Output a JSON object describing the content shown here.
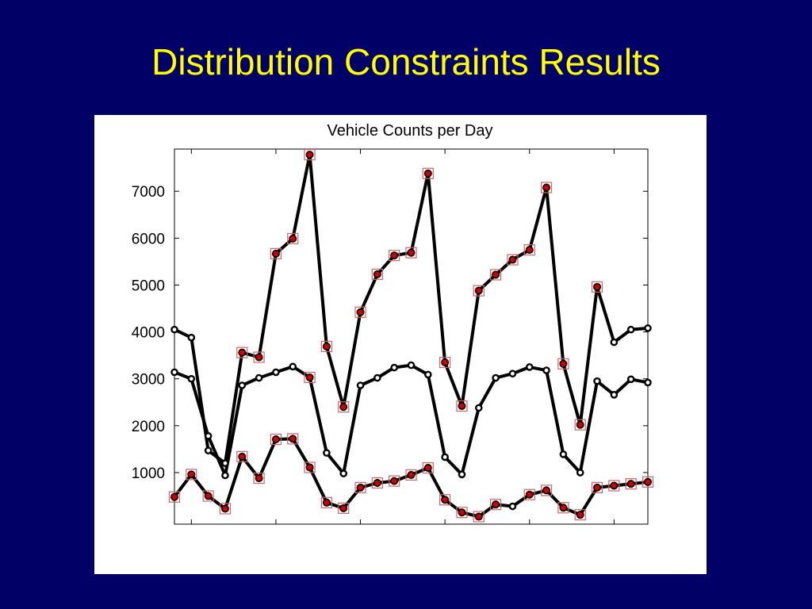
{
  "slide": {
    "title": "Distribution Constraints Results"
  },
  "colors": {
    "background": "#000066",
    "title": "#FFFF00",
    "panel": "#FFFFFF",
    "line": "#000000",
    "marker_fill": "#CC0000",
    "marker_box": "#CC6666"
  },
  "chart_data": {
    "type": "line",
    "title": "Vehicle Counts per Day",
    "xlabel": "",
    "ylabel": "",
    "xlim": [
      1,
      29
    ],
    "ylim": [
      -100,
      7900
    ],
    "yticks": [
      1000,
      2000,
      3000,
      4000,
      5000,
      6000,
      7000
    ],
    "xticks": [
      2,
      7,
      12,
      17,
      22,
      27
    ],
    "grid": false,
    "x": [
      1,
      2,
      3,
      4,
      5,
      6,
      7,
      8,
      9,
      10,
      11,
      12,
      13,
      14,
      15,
      16,
      17,
      18,
      19,
      20,
      21,
      22,
      23,
      24,
      25,
      26,
      27,
      28,
      29
    ],
    "series": [
      {
        "key": "upper",
        "marker": "dot",
        "values": [
          4050,
          3880,
          1470,
          1200,
          3560,
          3460,
          5670,
          5990,
          7780,
          3690,
          2400,
          4420,
          5230,
          5630,
          5690,
          7380,
          3350,
          2420,
          4880,
          5220,
          5540,
          5750,
          7080,
          3320,
          2020,
          4960,
          3780,
          4050,
          4080
        ]
      },
      {
        "key": "middle",
        "marker": "dot",
        "values": [
          3140,
          3000,
          1780,
          940,
          2860,
          3020,
          3140,
          3260,
          3030,
          1420,
          980,
          2860,
          3020,
          3240,
          3290,
          3090,
          1330,
          960,
          2380,
          3020,
          3110,
          3250,
          3180,
          1390,
          1000,
          2950,
          2660,
          2990,
          2920
        ]
      },
      {
        "key": "lower",
        "marker": "dot",
        "values": [
          480,
          960,
          500,
          230,
          1340,
          880,
          1710,
          1720,
          1110,
          360,
          240,
          680,
          780,
          820,
          950,
          1100,
          420,
          150,
          60,
          320,
          280,
          530,
          620,
          250,
          100,
          680,
          720,
          760,
          800
        ]
      }
    ],
    "highlighted": [
      {
        "series": "upper",
        "x": [
          5,
          6,
          7,
          8,
          9,
          10,
          11,
          12,
          13,
          14,
          15,
          16,
          17,
          18,
          19,
          20,
          21,
          22,
          23,
          24,
          25,
          26
        ]
      },
      {
        "series": "middle",
        "x": [
          9
        ]
      },
      {
        "series": "lower",
        "x": [
          1,
          2,
          3,
          4,
          5,
          6,
          7,
          8,
          9,
          10,
          11,
          12,
          13,
          14,
          15,
          16,
          17,
          18,
          19,
          20,
          22,
          23,
          24,
          25,
          26,
          27,
          28,
          29
        ]
      }
    ]
  }
}
